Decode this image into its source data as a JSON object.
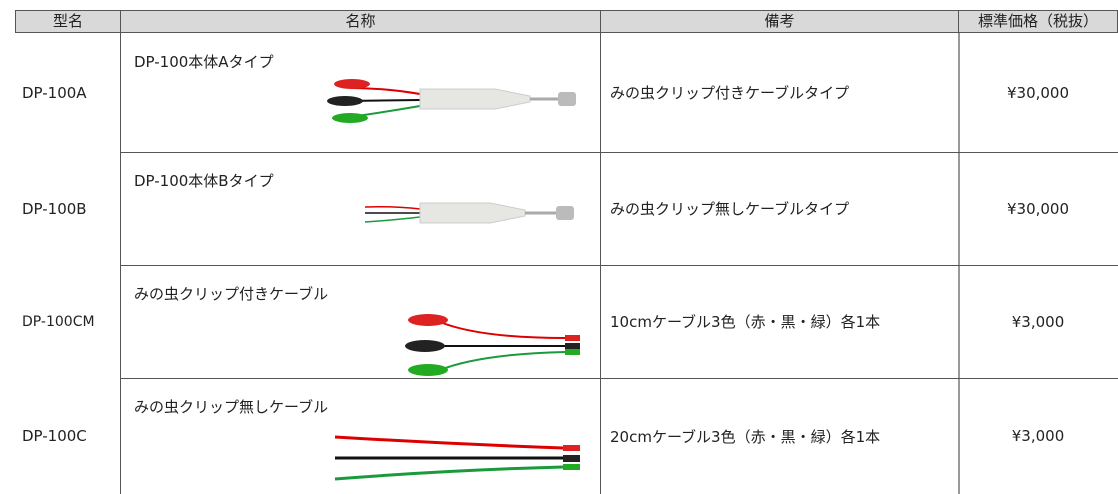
{
  "table": {
    "header": [
      "型名",
      "名称",
      "備考",
      "標準価格（税抜）"
    ],
    "rows": [
      [
        "DP-100A",
        "DP-100本体Aタイプ",
        "みの虫クリップ付きケーブルタイプ",
        "¥30,000"
      ],
      [
        "DP-100B",
        "DP-100本体Bタイプ",
        "みの虫クリップ無しケーブルタイプ",
        "¥30,000"
      ],
      [
        "DP-100CM",
        "みの虫クリップ付きケーブル",
        "10cmケーブル3色（赤・黒・緑）各1本",
        "¥3,000"
      ],
      [
        "DP-100C",
        "みの虫クリップ無しケーブル",
        "20cmケーブル3色（赤・黒・緑）各1本",
        "¥3,000"
      ]
    ]
  }
}
